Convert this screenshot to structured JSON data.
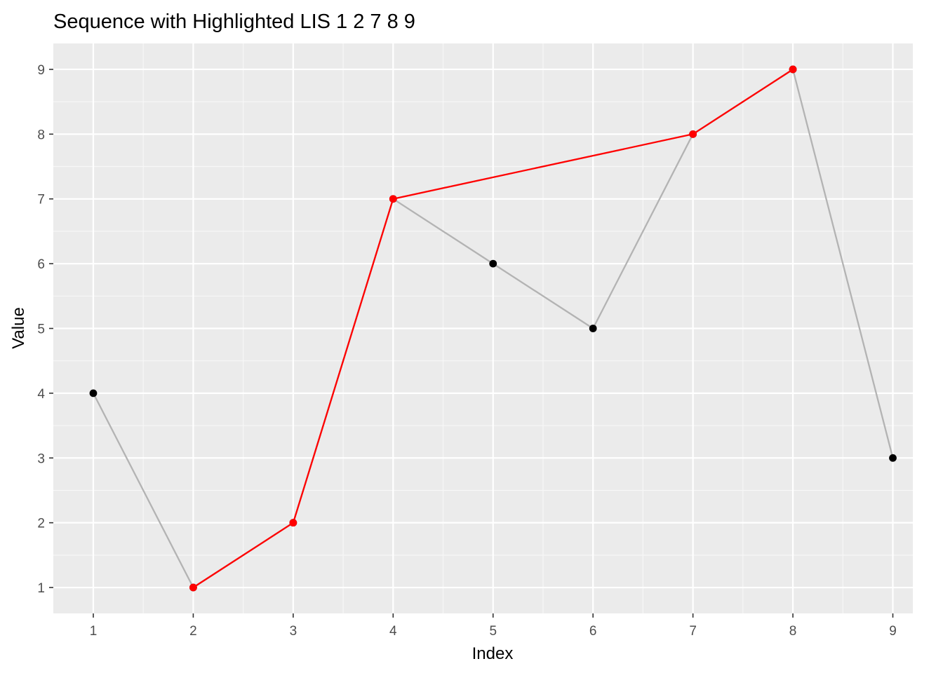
{
  "chart_data": {
    "type": "line",
    "title": "Sequence with Highlighted LIS 1 2 7 8 9",
    "xlabel": "Index",
    "ylabel": "Value",
    "x": [
      1,
      2,
      3,
      4,
      5,
      6,
      7,
      8,
      9
    ],
    "xlim": [
      0.6,
      9.2
    ],
    "ylim": [
      0.6,
      9.4
    ],
    "x_ticks": [
      "1",
      "2",
      "3",
      "4",
      "5",
      "6",
      "7",
      "8",
      "9"
    ],
    "y_ticks": [
      "1",
      "2",
      "3",
      "4",
      "5",
      "6",
      "7",
      "8",
      "9"
    ],
    "grid": true,
    "legend": "none",
    "series": [
      {
        "x": [
          1,
          2,
          3,
          4,
          5,
          6,
          7,
          8,
          9
        ],
        "values": [
          4,
          1,
          2,
          7,
          6,
          5,
          8,
          9,
          3
        ],
        "line_color": "#b3b3b3",
        "point_color": "#000000"
      },
      {
        "x": [
          2,
          3,
          4,
          7,
          8
        ],
        "values": [
          1,
          2,
          7,
          8,
          9
        ],
        "line_color": "#ff0000",
        "point_color": "#ff0000"
      }
    ],
    "colors": {
      "panel_background": "#ebebeb",
      "grid_major": "#ffffff",
      "grid_minor": "#f7f7f7"
    }
  }
}
